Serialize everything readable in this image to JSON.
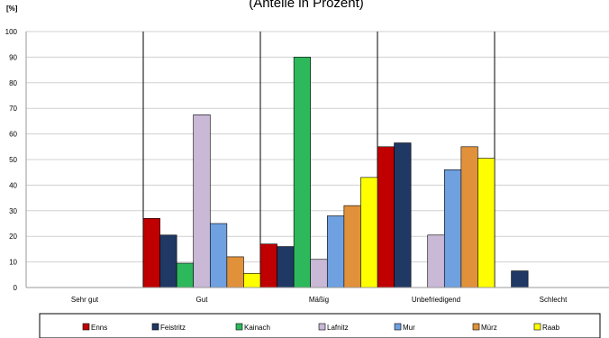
{
  "chart_data": {
    "type": "bar",
    "title": "(Anteile in Prozent)",
    "ylabel": "[%]",
    "xlabel": "",
    "ylim": [
      0,
      100
    ],
    "yticks": [
      0,
      10,
      20,
      30,
      40,
      50,
      60,
      70,
      80,
      90,
      100
    ],
    "grid": true,
    "legend_position": "bottom",
    "categories": [
      "Sehr gut",
      "Gut",
      "Mäßig",
      "Unbefriedigend",
      "Schlecht"
    ],
    "series": [
      {
        "name": "Enns",
        "color": "#c00000",
        "values": [
          0,
          27,
          17,
          55,
          0
        ]
      },
      {
        "name": "Feistritz",
        "color": "#1f3864",
        "values": [
          0,
          20.5,
          16,
          56.5,
          6.5
        ]
      },
      {
        "name": "Kainach",
        "color": "#2eb85c",
        "values": [
          0,
          9.5,
          90,
          0,
          0
        ]
      },
      {
        "name": "Lafnitz",
        "color": "#c9b8d6",
        "values": [
          0,
          67.5,
          11,
          20.5,
          0
        ]
      },
      {
        "name": "Mur",
        "color": "#6fa0e0",
        "values": [
          0,
          25,
          28,
          46,
          0
        ]
      },
      {
        "name": "Mürz",
        "color": "#e0913a",
        "values": [
          0,
          12,
          32,
          55,
          0
        ]
      },
      {
        "name": "Raab",
        "color": "#ffff00",
        "values": [
          0,
          5.5,
          43,
          50.5,
          0
        ]
      }
    ]
  }
}
